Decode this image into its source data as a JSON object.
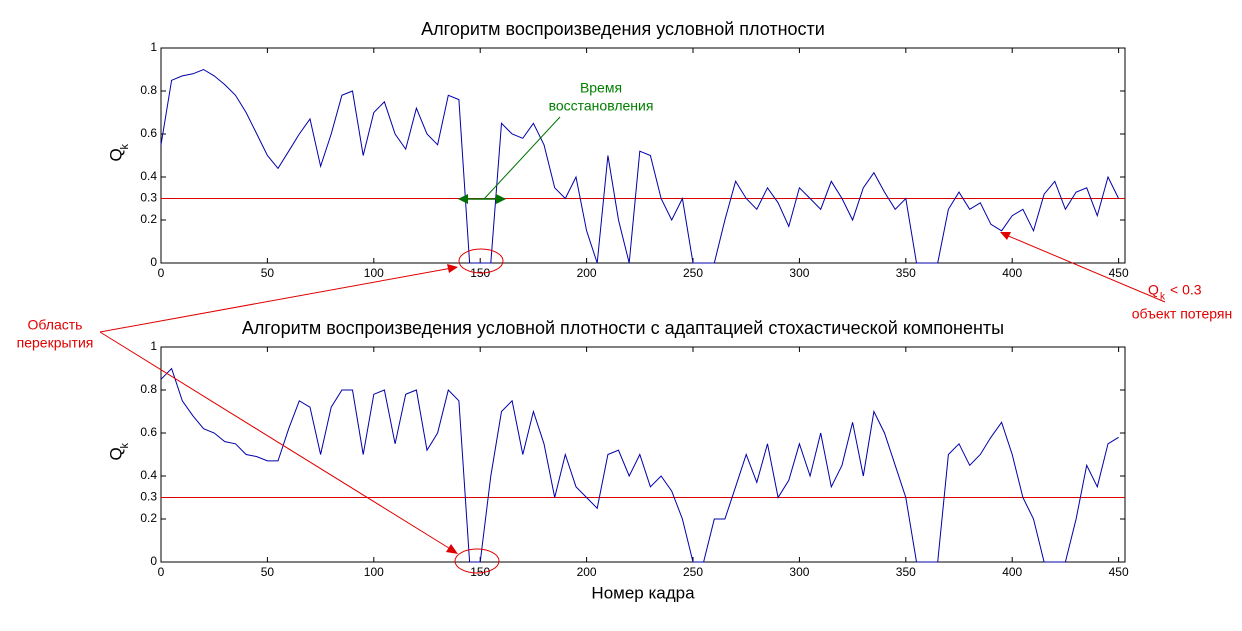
{
  "chart_data": [
    {
      "type": "line",
      "title": "Алгоритм воспроизведения условной плотности",
      "ylabel": "Q",
      "ylabel_sub": "k",
      "x": [
        0,
        5,
        10,
        15,
        20,
        25,
        30,
        35,
        40,
        45,
        50,
        55,
        60,
        65,
        70,
        75,
        80,
        85,
        90,
        95,
        100,
        105,
        110,
        115,
        120,
        125,
        130,
        135,
        140,
        145,
        150,
        155,
        160,
        165,
        170,
        175,
        180,
        185,
        190,
        195,
        200,
        205,
        210,
        215,
        220,
        225,
        230,
        235,
        240,
        245,
        250,
        255,
        260,
        265,
        270,
        275,
        280,
        285,
        290,
        295,
        300,
        305,
        310,
        315,
        320,
        325,
        330,
        335,
        340,
        345,
        350,
        355,
        360,
        365,
        370,
        375,
        380,
        385,
        390,
        395,
        400,
        405,
        410,
        415,
        420,
        425,
        430,
        435,
        440,
        445,
        450
      ],
      "values": [
        0.55,
        0.85,
        0.87,
        0.88,
        0.9,
        0.87,
        0.83,
        0.78,
        0.7,
        0.6,
        0.5,
        0.44,
        0.52,
        0.6,
        0.67,
        0.45,
        0.6,
        0.78,
        0.8,
        0.5,
        0.7,
        0.75,
        0.6,
        0.53,
        0.72,
        0.6,
        0.55,
        0.78,
        0.76,
        0,
        0,
        0,
        0.65,
        0.6,
        0.58,
        0.65,
        0.55,
        0.35,
        0.3,
        0.4,
        0.15,
        0,
        0.5,
        0.2,
        0,
        0.52,
        0.5,
        0.3,
        0.2,
        0.3,
        0,
        0,
        0,
        0.2,
        0.38,
        0.3,
        0.25,
        0.35,
        0.28,
        0.17,
        0.35,
        0.3,
        0.25,
        0.38,
        0.3,
        0.2,
        0.35,
        0.42,
        0.33,
        0.25,
        0.3,
        0,
        0,
        0,
        0.25,
        0.33,
        0.25,
        0.28,
        0.18,
        0.15,
        0.22,
        0.25,
        0.15,
        0.32,
        0.38,
        0.25,
        0.33,
        0.35,
        0.22,
        0.4,
        0.3
      ],
      "color": "#0000aa",
      "hline": 0.3,
      "hline_color": "#e00000",
      "xlim": [
        0,
        453
      ],
      "ylim": [
        0,
        1
      ],
      "xticks": [
        0,
        50,
        100,
        150,
        200,
        250,
        300,
        350,
        400,
        450
      ],
      "yticks": [
        0,
        0.2,
        0.3,
        0.4,
        0.6,
        0.8,
        1
      ]
    },
    {
      "type": "line",
      "title": "Алгоритм воспроизведения условной плотности с адаптацией стохастической компоненты",
      "ylabel": "Q",
      "ylabel_sub": "k",
      "xlabel": "Номер кадра",
      "x": [
        0,
        5,
        10,
        15,
        20,
        25,
        30,
        35,
        40,
        45,
        50,
        55,
        60,
        65,
        70,
        75,
        80,
        85,
        90,
        95,
        100,
        105,
        110,
        115,
        120,
        125,
        130,
        135,
        140,
        145,
        150,
        155,
        160,
        165,
        170,
        175,
        180,
        185,
        190,
        195,
        200,
        205,
        210,
        215,
        220,
        225,
        230,
        235,
        240,
        245,
        250,
        255,
        260,
        265,
        270,
        275,
        280,
        285,
        290,
        295,
        300,
        305,
        310,
        315,
        320,
        325,
        330,
        335,
        340,
        345,
        350,
        355,
        360,
        365,
        370,
        375,
        380,
        385,
        390,
        395,
        400,
        405,
        410,
        415,
        420,
        425,
        430,
        435,
        440,
        445,
        450
      ],
      "values": [
        0.85,
        0.9,
        0.75,
        0.68,
        0.62,
        0.6,
        0.56,
        0.55,
        0.5,
        0.49,
        0.47,
        0.47,
        0.62,
        0.75,
        0.72,
        0.5,
        0.72,
        0.8,
        0.8,
        0.5,
        0.78,
        0.8,
        0.55,
        0.78,
        0.8,
        0.52,
        0.6,
        0.8,
        0.75,
        0,
        0,
        0.4,
        0.7,
        0.75,
        0.5,
        0.7,
        0.55,
        0.3,
        0.5,
        0.35,
        0.3,
        0.25,
        0.5,
        0.52,
        0.4,
        0.5,
        0.35,
        0.4,
        0.33,
        0.2,
        0,
        0,
        0.2,
        0.2,
        0.35,
        0.5,
        0.37,
        0.55,
        0.3,
        0.38,
        0.55,
        0.4,
        0.6,
        0.35,
        0.45,
        0.65,
        0.4,
        0.7,
        0.6,
        0.45,
        0.3,
        0,
        0,
        0,
        0.5,
        0.55,
        0.45,
        0.5,
        0.58,
        0.65,
        0.5,
        0.3,
        0.2,
        0,
        0,
        0,
        0.2,
        0.45,
        0.35,
        0.55,
        0.58
      ],
      "color": "#0000aa",
      "hline": 0.3,
      "hline_color": "#e00000",
      "xlim": [
        0,
        453
      ],
      "ylim": [
        0,
        1
      ],
      "xticks": [
        0,
        50,
        100,
        150,
        200,
        250,
        300,
        350,
        400,
        450
      ],
      "yticks": [
        0,
        0.2,
        0.3,
        0.4,
        0.6,
        0.8,
        1
      ]
    }
  ],
  "annotations": {
    "recovery": [
      "Время",
      "восстановления"
    ],
    "overlap": [
      "Область",
      "перекрытия"
    ],
    "lost_q": "Q",
    "lost_q_sub": "k",
    "lost_cond": "< 0.3",
    "lost_text": "объект потерян"
  }
}
